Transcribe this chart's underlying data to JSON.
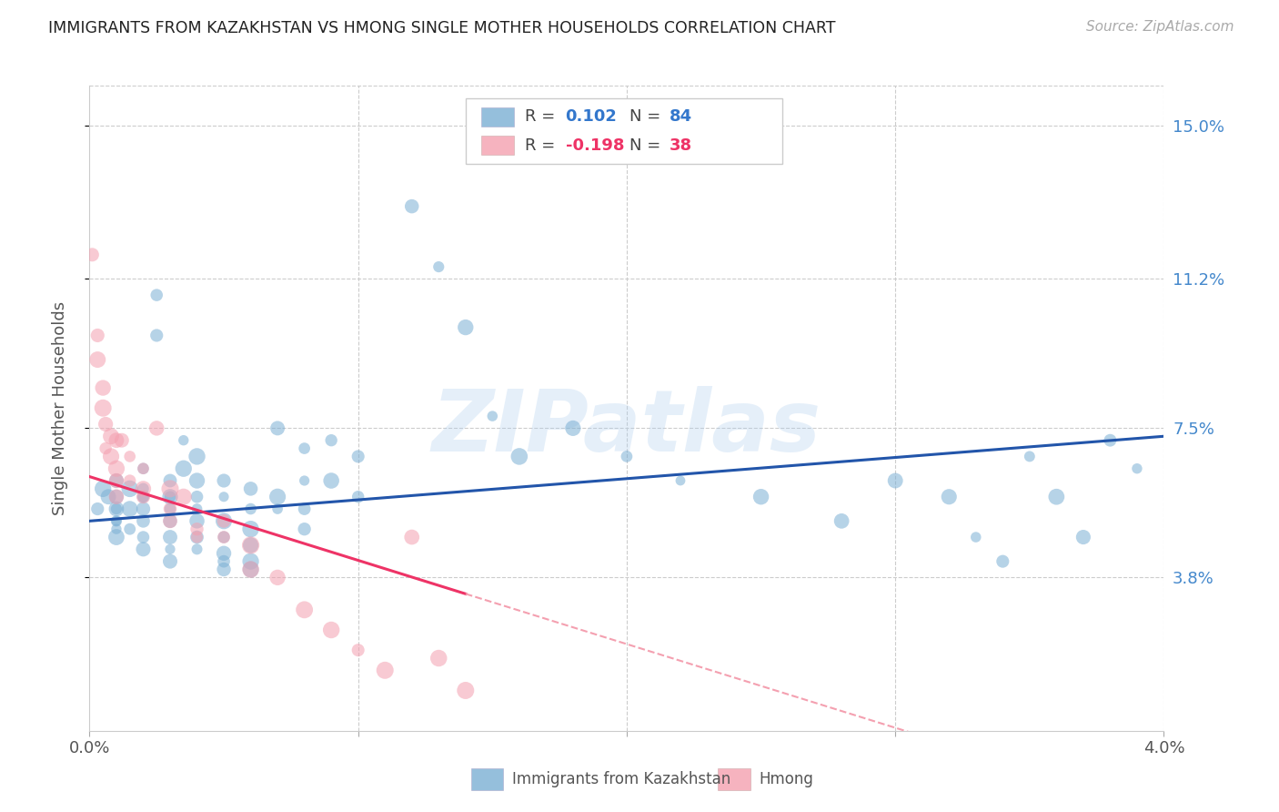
{
  "title": "IMMIGRANTS FROM KAZAKHSTAN VS HMONG SINGLE MOTHER HOUSEHOLDS CORRELATION CHART",
  "source": "Source: ZipAtlas.com",
  "ylabel": "Single Mother Households",
  "right_yticks": [
    "15.0%",
    "11.2%",
    "7.5%",
    "3.8%"
  ],
  "right_ytick_vals": [
    0.15,
    0.112,
    0.075,
    0.038
  ],
  "xmin": 0.0,
  "xmax": 0.04,
  "ymin": 0.0,
  "ymax": 0.16,
  "color_blue": "#7BAFD4",
  "color_pink": "#F4A0B0",
  "trend_blue": "#2255AA",
  "trend_pink": "#EE3366",
  "trend_pink_dashed": "#F4A0B0",
  "blue_scatter": [
    [
      0.0003,
      0.055
    ],
    [
      0.0005,
      0.06
    ],
    [
      0.0007,
      0.058
    ],
    [
      0.001,
      0.062
    ],
    [
      0.001,
      0.055
    ],
    [
      0.001,
      0.052
    ],
    [
      0.001,
      0.05
    ],
    [
      0.001,
      0.048
    ],
    [
      0.001,
      0.058
    ],
    [
      0.001,
      0.055
    ],
    [
      0.001,
      0.052
    ],
    [
      0.0015,
      0.06
    ],
    [
      0.0015,
      0.055
    ],
    [
      0.0015,
      0.05
    ],
    [
      0.002,
      0.065
    ],
    [
      0.002,
      0.06
    ],
    [
      0.002,
      0.058
    ],
    [
      0.002,
      0.055
    ],
    [
      0.002,
      0.052
    ],
    [
      0.002,
      0.048
    ],
    [
      0.002,
      0.045
    ],
    [
      0.002,
      0.058
    ],
    [
      0.0025,
      0.108
    ],
    [
      0.0025,
      0.098
    ],
    [
      0.003,
      0.062
    ],
    [
      0.003,
      0.058
    ],
    [
      0.003,
      0.055
    ],
    [
      0.003,
      0.052
    ],
    [
      0.003,
      0.048
    ],
    [
      0.003,
      0.045
    ],
    [
      0.003,
      0.042
    ],
    [
      0.003,
      0.058
    ],
    [
      0.0035,
      0.072
    ],
    [
      0.0035,
      0.065
    ],
    [
      0.004,
      0.068
    ],
    [
      0.004,
      0.062
    ],
    [
      0.004,
      0.058
    ],
    [
      0.004,
      0.055
    ],
    [
      0.004,
      0.052
    ],
    [
      0.004,
      0.048
    ],
    [
      0.004,
      0.045
    ],
    [
      0.005,
      0.062
    ],
    [
      0.005,
      0.058
    ],
    [
      0.005,
      0.052
    ],
    [
      0.005,
      0.048
    ],
    [
      0.005,
      0.044
    ],
    [
      0.005,
      0.042
    ],
    [
      0.005,
      0.04
    ],
    [
      0.006,
      0.06
    ],
    [
      0.006,
      0.055
    ],
    [
      0.006,
      0.05
    ],
    [
      0.006,
      0.046
    ],
    [
      0.006,
      0.042
    ],
    [
      0.006,
      0.04
    ],
    [
      0.007,
      0.075
    ],
    [
      0.007,
      0.058
    ],
    [
      0.007,
      0.055
    ],
    [
      0.008,
      0.07
    ],
    [
      0.008,
      0.062
    ],
    [
      0.008,
      0.055
    ],
    [
      0.008,
      0.05
    ],
    [
      0.009,
      0.072
    ],
    [
      0.009,
      0.062
    ],
    [
      0.01,
      0.068
    ],
    [
      0.01,
      0.058
    ],
    [
      0.012,
      0.13
    ],
    [
      0.013,
      0.115
    ],
    [
      0.014,
      0.1
    ],
    [
      0.015,
      0.078
    ],
    [
      0.016,
      0.068
    ],
    [
      0.018,
      0.075
    ],
    [
      0.02,
      0.068
    ],
    [
      0.022,
      0.062
    ],
    [
      0.025,
      0.058
    ],
    [
      0.028,
      0.052
    ],
    [
      0.03,
      0.062
    ],
    [
      0.032,
      0.058
    ],
    [
      0.033,
      0.048
    ],
    [
      0.034,
      0.042
    ],
    [
      0.035,
      0.068
    ],
    [
      0.036,
      0.058
    ],
    [
      0.037,
      0.048
    ],
    [
      0.038,
      0.072
    ],
    [
      0.039,
      0.065
    ]
  ],
  "pink_scatter": [
    [
      0.0001,
      0.118
    ],
    [
      0.0003,
      0.098
    ],
    [
      0.0003,
      0.092
    ],
    [
      0.0005,
      0.085
    ],
    [
      0.0005,
      0.08
    ],
    [
      0.0006,
      0.076
    ],
    [
      0.0006,
      0.07
    ],
    [
      0.0008,
      0.073
    ],
    [
      0.0008,
      0.068
    ],
    [
      0.001,
      0.072
    ],
    [
      0.001,
      0.065
    ],
    [
      0.001,
      0.062
    ],
    [
      0.001,
      0.058
    ],
    [
      0.0012,
      0.072
    ],
    [
      0.0015,
      0.068
    ],
    [
      0.0015,
      0.062
    ],
    [
      0.002,
      0.065
    ],
    [
      0.002,
      0.06
    ],
    [
      0.002,
      0.058
    ],
    [
      0.0025,
      0.075
    ],
    [
      0.003,
      0.06
    ],
    [
      0.003,
      0.055
    ],
    [
      0.003,
      0.052
    ],
    [
      0.0035,
      0.058
    ],
    [
      0.004,
      0.05
    ],
    [
      0.004,
      0.048
    ],
    [
      0.005,
      0.052
    ],
    [
      0.005,
      0.048
    ],
    [
      0.006,
      0.046
    ],
    [
      0.006,
      0.04
    ],
    [
      0.007,
      0.038
    ],
    [
      0.008,
      0.03
    ],
    [
      0.009,
      0.025
    ],
    [
      0.01,
      0.02
    ],
    [
      0.011,
      0.015
    ],
    [
      0.012,
      0.048
    ],
    [
      0.013,
      0.018
    ],
    [
      0.014,
      0.01
    ]
  ],
  "blue_sizes": 100,
  "pink_sizes": 130,
  "watermark": "ZIPatlas",
  "grid_color": "#CCCCCC",
  "background_color": "#FFFFFF"
}
